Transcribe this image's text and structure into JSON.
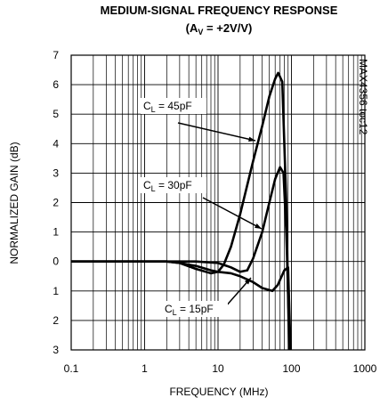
{
  "chart_data": {
    "type": "line",
    "title": "MEDIUM-SIGNAL FREQUENCY RESPONSE",
    "subtitle": {
      "text": "(A",
      "sub": "V",
      "rest": " = +2V/V)"
    },
    "xlabel": "FREQUENCY (MHz)",
    "ylabel": "NORMALIZED GAIN (dB)",
    "watermark": "MAX4356 toc12",
    "xscale": "log",
    "xlim": [
      0.1,
      1000
    ],
    "xticks": [
      0.1,
      1,
      10,
      100,
      1000
    ],
    "ylim": [
      -3,
      7
    ],
    "yticks": [
      {
        "value": -3,
        "label": "3"
      },
      {
        "value": -2,
        "label": "2"
      },
      {
        "value": -1,
        "label": "1"
      },
      0,
      1,
      2,
      3,
      4,
      5,
      6,
      7
    ],
    "grid": true,
    "minor_grid": true,
    "series": [
      {
        "label": {
          "text": "C",
          "sub": "L",
          "rest": " = 45pF"
        },
        "color": "#000000",
        "x": [
          0.1,
          1,
          2,
          3,
          5,
          8,
          10,
          12,
          15,
          20,
          30,
          40,
          50,
          60,
          66,
          75,
          85,
          93
        ],
        "values": [
          0,
          0,
          0,
          -0.05,
          -0.25,
          -0.4,
          -0.35,
          -0.1,
          0.5,
          1.6,
          3.4,
          4.6,
          5.6,
          6.2,
          6.4,
          6.1,
          2,
          -3
        ]
      },
      {
        "label": {
          "text": "C",
          "sub": "L",
          "rest": " = 30pF"
        },
        "color": "#000000",
        "x": [
          0.1,
          1,
          3,
          5,
          10,
          15,
          20,
          25,
          30,
          40,
          50,
          60,
          70,
          78,
          85,
          95
        ],
        "values": [
          0,
          0,
          0,
          0,
          -0.05,
          -0.2,
          -0.35,
          -0.3,
          0.1,
          1.0,
          2.0,
          2.8,
          3.2,
          3.0,
          1,
          -3
        ]
      },
      {
        "label": {
          "text": "C",
          "sub": "L",
          "rest": " = 15pF"
        },
        "color": "#000000",
        "x": [
          0.1,
          1,
          2,
          3,
          5,
          8,
          10,
          15,
          20,
          30,
          40,
          55,
          65,
          80,
          90,
          97
        ],
        "values": [
          0,
          0,
          0,
          -0.05,
          -0.15,
          -0.3,
          -0.35,
          -0.4,
          -0.5,
          -0.7,
          -0.9,
          -1.0,
          -0.8,
          -0.3,
          -0.2,
          -3
        ]
      }
    ]
  }
}
